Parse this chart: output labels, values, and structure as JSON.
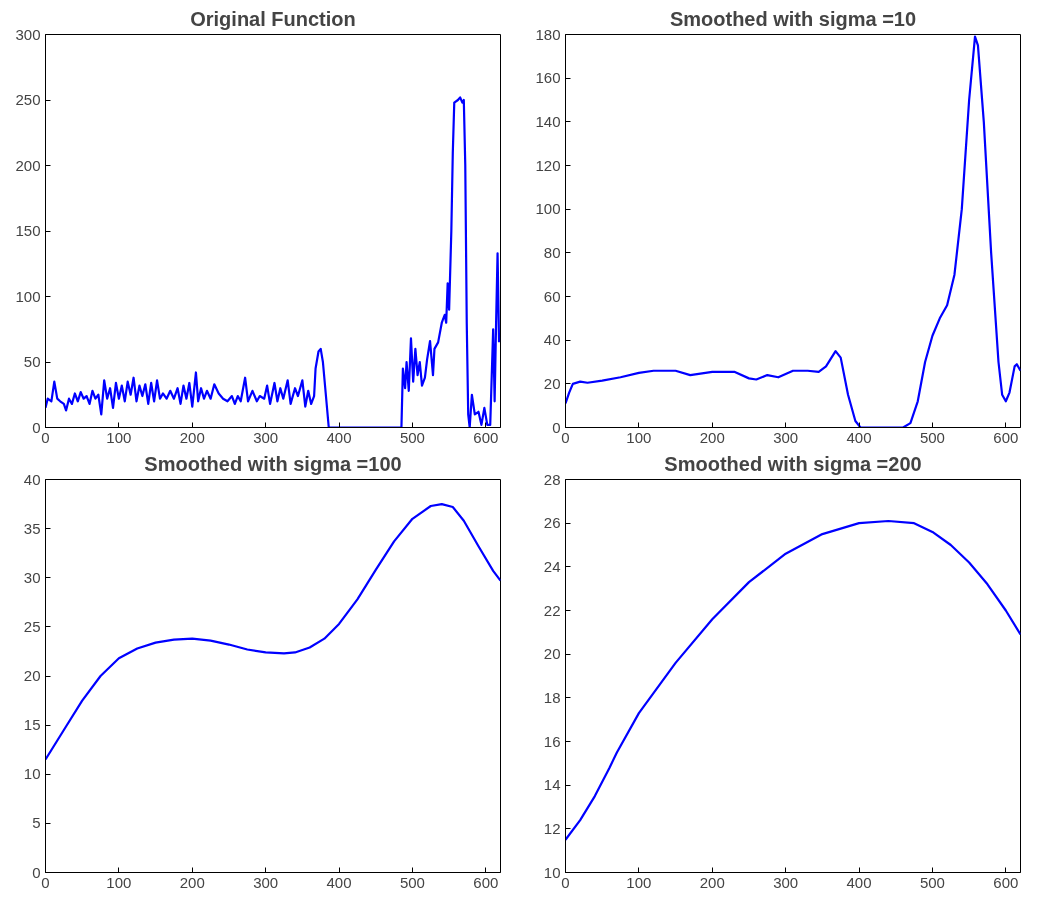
{
  "chart_data": [
    {
      "type": "line",
      "title": "Original Function",
      "xlim": [
        0,
        620
      ],
      "ylim": [
        0,
        300
      ],
      "xticks": [
        0,
        100,
        200,
        300,
        400,
        500,
        600
      ],
      "yticks": [
        0,
        50,
        100,
        150,
        200,
        250,
        300
      ],
      "marker": "none",
      "line_style": "solid",
      "series": [
        {
          "color": "#0000ff",
          "x": [
            0,
            3,
            8,
            12,
            16,
            20,
            25,
            28,
            32,
            36,
            40,
            44,
            48,
            52,
            56,
            60,
            64,
            68,
            72,
            76,
            80,
            84,
            88,
            92,
            96,
            100,
            104,
            108,
            112,
            116,
            120,
            124,
            128,
            132,
            136,
            140,
            144,
            148,
            152,
            156,
            160,
            165,
            170,
            175,
            180,
            184,
            188,
            192,
            196,
            200,
            205,
            208,
            212,
            216,
            220,
            225,
            230,
            236,
            242,
            248,
            254,
            258,
            262,
            266,
            272,
            276,
            282,
            288,
            292,
            298,
            302,
            306,
            312,
            316,
            320,
            324,
            330,
            334,
            340,
            344,
            350,
            354,
            358,
            362,
            366,
            368,
            372,
            375,
            378,
            382,
            386,
            400,
            450,
            485,
            487,
            490,
            492,
            495,
            498,
            501,
            504,
            507,
            510,
            513,
            517,
            520,
            524,
            528,
            530,
            535,
            540,
            544,
            546,
            548,
            550,
            553,
            555,
            557,
            562,
            565,
            568,
            570,
            572,
            574,
            576,
            578,
            581,
            585,
            590,
            594,
            598,
            602,
            606,
            610,
            612,
            614,
            616,
            618
          ],
          "values": [
            15,
            22,
            20,
            35,
            22,
            20,
            18,
            13,
            22,
            18,
            26,
            20,
            27,
            22,
            24,
            18,
            28,
            22,
            25,
            10,
            36,
            22,
            30,
            15,
            34,
            22,
            32,
            20,
            35,
            25,
            38,
            20,
            32,
            24,
            33,
            18,
            34,
            20,
            36,
            22,
            26,
            22,
            28,
            22,
            30,
            18,
            32,
            22,
            34,
            16,
            42,
            20,
            30,
            22,
            28,
            22,
            33,
            26,
            22,
            20,
            24,
            18,
            24,
            20,
            38,
            20,
            28,
            20,
            24,
            22,
            32,
            18,
            34,
            20,
            30,
            22,
            36,
            18,
            30,
            24,
            36,
            16,
            28,
            18,
            24,
            45,
            58,
            60,
            50,
            25,
            0,
            0,
            0,
            0,
            45,
            30,
            50,
            28,
            68,
            35,
            60,
            40,
            50,
            32,
            38,
            52,
            66,
            40,
            60,
            65,
            80,
            86,
            80,
            110,
            90,
            150,
            210,
            248,
            250,
            252,
            248,
            250,
            200,
            80,
            10,
            0,
            25,
            10,
            12,
            2,
            15,
            2,
            2,
            75,
            20,
            80,
            133,
            65
          ]
        }
      ]
    },
    {
      "type": "line",
      "title": "Smoothed with sigma =10",
      "xlim": [
        0,
        620
      ],
      "ylim": [
        0,
        180
      ],
      "xticks": [
        0,
        100,
        200,
        300,
        400,
        500,
        600
      ],
      "yticks": [
        0,
        20,
        40,
        60,
        80,
        100,
        120,
        140,
        160,
        180
      ],
      "marker": "none",
      "line_style": "solid",
      "series": [
        {
          "color": "#0000ff",
          "x": [
            0,
            5,
            10,
            20,
            30,
            50,
            75,
            100,
            120,
            150,
            170,
            200,
            230,
            250,
            260,
            275,
            290,
            310,
            330,
            345,
            355,
            368,
            375,
            385,
            395,
            402,
            420,
            460,
            470,
            480,
            490,
            500,
            510,
            520,
            530,
            540,
            550,
            558,
            562,
            570,
            580,
            590,
            595,
            600,
            605,
            612,
            615,
            620
          ],
          "values": [
            11,
            16,
            20,
            21,
            20.5,
            21.5,
            23,
            25,
            26,
            26,
            24,
            25.5,
            25.5,
            22.5,
            22,
            24,
            23,
            26,
            26,
            25.5,
            28,
            35,
            32,
            15,
            3,
            0,
            0,
            0,
            2,
            12,
            30,
            42,
            50,
            56,
            70,
            100,
            150,
            179,
            175,
            140,
            80,
            30,
            15,
            12,
            16,
            28,
            29,
            26
          ]
        }
      ]
    },
    {
      "type": "line",
      "title": "Smoothed with sigma =100",
      "xlim": [
        0,
        620
      ],
      "ylim": [
        0,
        40
      ],
      "xticks": [
        0,
        100,
        200,
        300,
        400,
        500,
        600
      ],
      "yticks": [
        0,
        5,
        10,
        15,
        20,
        25,
        30,
        35,
        40
      ],
      "marker": "none",
      "line_style": "solid",
      "series": [
        {
          "color": "#0000ff",
          "x": [
            0,
            25,
            50,
            75,
            100,
            125,
            150,
            175,
            200,
            225,
            250,
            275,
            300,
            325,
            340,
            360,
            380,
            400,
            425,
            450,
            475,
            500,
            525,
            540,
            555,
            570,
            590,
            610,
            620
          ],
          "values": [
            11.5,
            14.5,
            17.5,
            20,
            21.8,
            22.8,
            23.4,
            23.7,
            23.8,
            23.6,
            23.2,
            22.7,
            22.4,
            22.3,
            22.4,
            22.9,
            23.8,
            25.3,
            27.8,
            30.8,
            33.7,
            36,
            37.3,
            37.5,
            37.2,
            35.8,
            33.2,
            30.7,
            29.7
          ]
        }
      ]
    },
    {
      "type": "line",
      "title": "Smoothed with sigma =200",
      "xlim": [
        0,
        620
      ],
      "ylim": [
        10,
        28
      ],
      "xticks": [
        0,
        100,
        200,
        300,
        400,
        500,
        600
      ],
      "yticks": [
        10,
        12,
        14,
        16,
        18,
        20,
        22,
        24,
        26,
        28
      ],
      "marker": "none",
      "line_style": "solid",
      "series": [
        {
          "color": "#0000ff",
          "x": [
            0,
            20,
            40,
            60,
            70,
            100,
            150,
            200,
            250,
            300,
            350,
            400,
            440,
            475,
            500,
            525,
            550,
            575,
            600,
            620
          ],
          "values": [
            11.5,
            12.4,
            13.5,
            14.8,
            15.5,
            17.3,
            19.6,
            21.6,
            23.3,
            24.6,
            25.5,
            26,
            26.1,
            26,
            25.6,
            25,
            24.2,
            23.2,
            22,
            20.9
          ]
        }
      ]
    }
  ]
}
